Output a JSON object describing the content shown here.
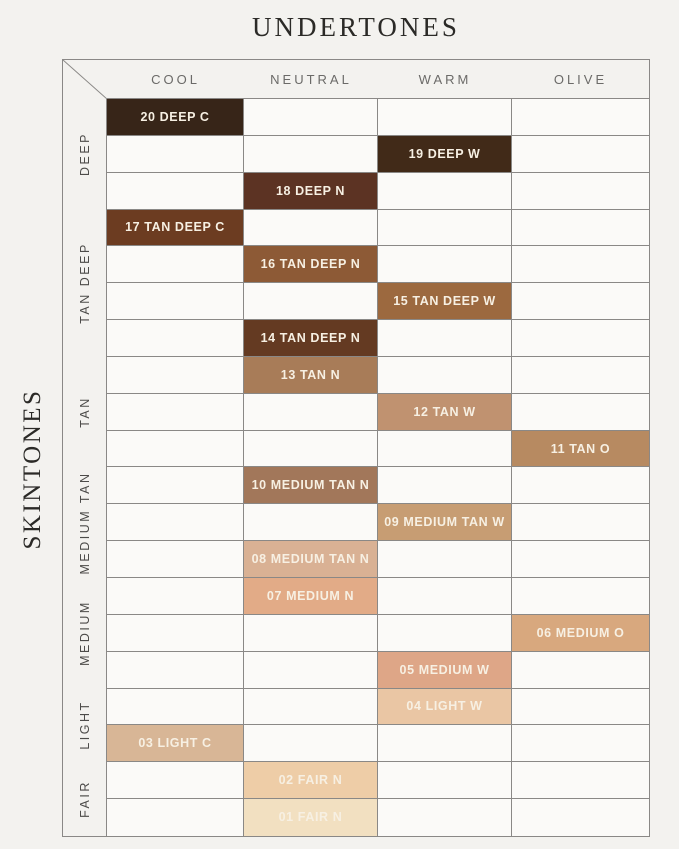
{
  "title": "UNDERTONES",
  "side_title": "SKINTONES",
  "colors": {
    "page_background": "#f3f2ef",
    "empty_cell_background": "#fbfaf8",
    "grid_line": "#8a8886",
    "title_text": "#2b2a27",
    "header_text": "#6b6a68",
    "group_label_text": "#4c4b49",
    "shade_label_text": "#f7f0e3"
  },
  "chart_data": {
    "type": "table",
    "title": "UNDERTONES",
    "ylabel": "SKINTONES",
    "columns": [
      "COOL",
      "NEUTRAL",
      "WARM",
      "OLIVE"
    ],
    "row_groups": [
      {
        "label": "DEEP",
        "rows": 3
      },
      {
        "label": "TAN DEEP",
        "rows": 4
      },
      {
        "label": "TAN",
        "rows": 3
      },
      {
        "label": "MEDIUM TAN",
        "rows": 3
      },
      {
        "label": "MEDIUM",
        "rows": 3
      },
      {
        "label": "LIGHT",
        "rows": 2
      },
      {
        "label": "FAIR",
        "rows": 2
      }
    ],
    "total_rows": 20,
    "shades": [
      {
        "row": 1,
        "column": "COOL",
        "label": "20 DEEP C",
        "color": "#372518"
      },
      {
        "row": 2,
        "column": "WARM",
        "label": "19 DEEP W",
        "color": "#412a18"
      },
      {
        "row": 3,
        "column": "NEUTRAL",
        "label": "18 DEEP N",
        "color": "#5c3323"
      },
      {
        "row": 4,
        "column": "COOL",
        "label": "17 TAN DEEP C",
        "color": "#6c3c21"
      },
      {
        "row": 5,
        "column": "NEUTRAL",
        "label": "16 TAN DEEP N",
        "color": "#8d5a36"
      },
      {
        "row": 6,
        "column": "WARM",
        "label": "15 TAN DEEP W",
        "color": "#9c693f"
      },
      {
        "row": 7,
        "column": "NEUTRAL",
        "label": "14 TAN DEEP N",
        "color": "#643a22"
      },
      {
        "row": 8,
        "column": "NEUTRAL",
        "label": "13 TAN N",
        "color": "#a87c58"
      },
      {
        "row": 9,
        "column": "WARM",
        "label": "12 TAN W",
        "color": "#c09270"
      },
      {
        "row": 10,
        "column": "OLIVE",
        "label": "11 TAN O",
        "color": "#b78a61"
      },
      {
        "row": 11,
        "column": "NEUTRAL",
        "label": "10 MEDIUM TAN N",
        "color": "#a2775a"
      },
      {
        "row": 12,
        "column": "WARM",
        "label": "09 MEDIUM TAN W",
        "color": "#c79d73"
      },
      {
        "row": 13,
        "column": "NEUTRAL",
        "label": "08 MEDIUM TAN N",
        "color": "#d9b194"
      },
      {
        "row": 14,
        "column": "NEUTRAL",
        "label": "07 MEDIUM N",
        "color": "#e2ab87"
      },
      {
        "row": 15,
        "column": "OLIVE",
        "label": "06 MEDIUM O",
        "color": "#d8a87e"
      },
      {
        "row": 16,
        "column": "WARM",
        "label": "05 MEDIUM W",
        "color": "#dea687"
      },
      {
        "row": 17,
        "column": "WARM",
        "label": "04 LIGHT W",
        "color": "#eac6a4"
      },
      {
        "row": 18,
        "column": "COOL",
        "label": "03 LIGHT C",
        "color": "#d8b696"
      },
      {
        "row": 19,
        "column": "NEUTRAL",
        "label": "02 FAIR N",
        "color": "#eecda7"
      },
      {
        "row": 20,
        "column": "NEUTRAL",
        "label": "01 FAIR N",
        "color": "#f2e0c1"
      }
    ]
  }
}
